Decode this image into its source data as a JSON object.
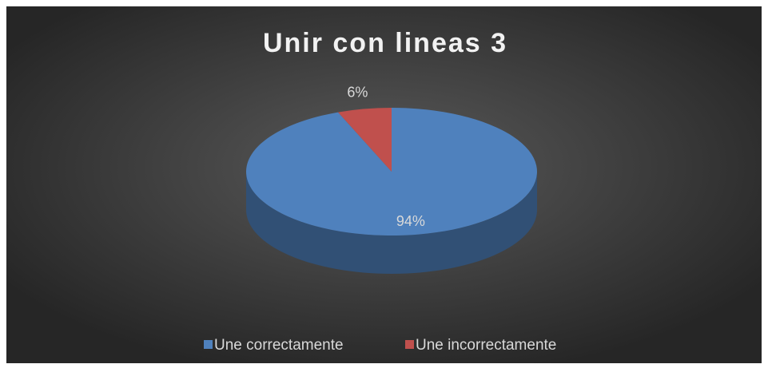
{
  "chart_data": {
    "type": "pie",
    "title": "Unir con lineas 3",
    "categories": [
      "Une correctamente",
      "Une incorrectamente"
    ],
    "values": [
      94,
      6
    ],
    "value_labels": [
      "94%",
      "6%"
    ],
    "colors": [
      "#4f81bd",
      "#c0504d"
    ],
    "legend": "bottom"
  }
}
